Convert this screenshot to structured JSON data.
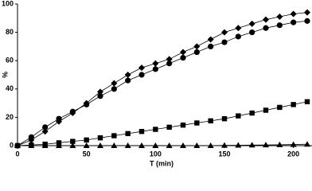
{
  "chart_data": {
    "type": "line",
    "x_label": "T (min)",
    "y_label": "%",
    "x": [
      0,
      10,
      20,
      30,
      40,
      50,
      60,
      70,
      80,
      90,
      100,
      110,
      120,
      130,
      140,
      150,
      160,
      170,
      180,
      190,
      200,
      210
    ],
    "series": [
      {
        "color": "#000000",
        "marker": "diamond",
        "values": [
          0,
          4,
          10,
          17,
          23,
          30,
          38,
          44,
          50,
          55,
          58,
          61,
          66,
          70,
          75,
          80,
          83,
          86,
          89,
          91,
          93,
          94
        ]
      },
      {
        "color": "#000000",
        "marker": "circle",
        "values": [
          0,
          6,
          13,
          19,
          24,
          29,
          35,
          40,
          46,
          50,
          54,
          58,
          62,
          66,
          70,
          73,
          77,
          80,
          83,
          85,
          87,
          88
        ]
      },
      {
        "color": "#000000",
        "marker": "square",
        "values": [
          0,
          0.5,
          1,
          2,
          3,
          4,
          5.5,
          7,
          8.5,
          10,
          11.5,
          13,
          14.5,
          16,
          17.5,
          19,
          21,
          23,
          25,
          27,
          29,
          31
        ]
      },
      {
        "color": "#000000",
        "marker": "triangle",
        "values": [
          0,
          0,
          0,
          0,
          0,
          0,
          0,
          0,
          0,
          0,
          0,
          0,
          0,
          0,
          0,
          0.2,
          0.3,
          0.4,
          0.5,
          0.6,
          0.8,
          1
        ]
      }
    ],
    "xlim": [
      0,
      210
    ],
    "xticks": [
      0,
      50,
      100,
      150,
      200
    ],
    "ylim": [
      0,
      100
    ],
    "yticks": [
      0,
      20,
      40,
      60,
      80,
      100
    ],
    "grid": false
  }
}
